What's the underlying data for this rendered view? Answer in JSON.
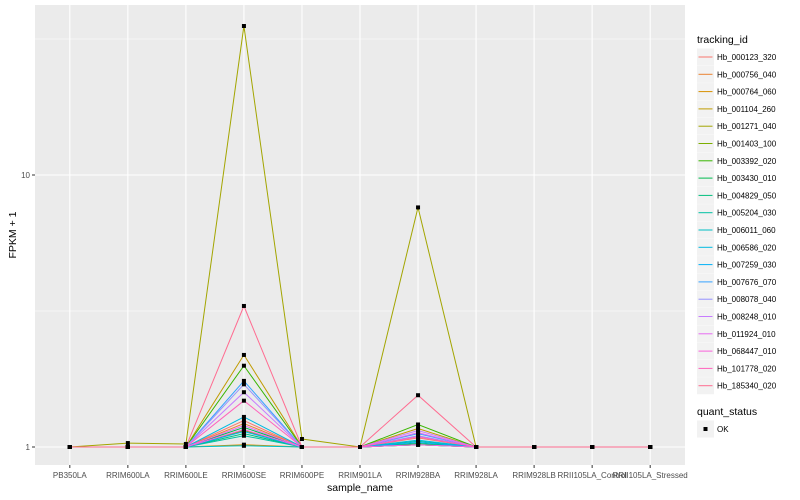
{
  "chart_data": {
    "type": "line",
    "xlabel": "sample_name",
    "ylabel": "FPKM + 1",
    "y_scale": "log10",
    "ylim": [
      0.97,
      47
    ],
    "y_ticks": [
      "1",
      "10"
    ],
    "grid": true,
    "legend_placement": "right",
    "categories": [
      "PB350LA",
      "RRIM600LA",
      "RRIM600LE",
      "RRIM600SE",
      "RRIM600PE",
      "RRIM901LA",
      "RRIM928BA",
      "RRIM928LA",
      "RRIM928LB",
      "RRII105LA_Control",
      "RRII105LA_Stressed"
    ],
    "color_legend_title": "tracking_id",
    "shape_legend_title": "quant_status",
    "shape_legend_items": [
      "OK"
    ],
    "series": [
      {
        "name": "Hb_000123_320",
        "color": "#F8766D",
        "values": [
          1,
          1,
          1,
          1.25,
          1,
          1,
          1.08,
          1,
          1,
          1,
          1
        ]
      },
      {
        "name": "Hb_000756_040",
        "color": "#EA8331",
        "values": [
          1,
          1,
          1,
          1.22,
          1,
          1,
          1.02,
          1,
          1,
          1,
          1
        ]
      },
      {
        "name": "Hb_000764_060",
        "color": "#D89000",
        "values": [
          1,
          1,
          1,
          1.02,
          1,
          1,
          1.02,
          1,
          1,
          1,
          1
        ]
      },
      {
        "name": "Hb_001104_260",
        "color": "#C09B00",
        "values": [
          1,
          1,
          1,
          2.18,
          1,
          1,
          1.17,
          1,
          1,
          1,
          1
        ]
      },
      {
        "name": "Hb_001271_040",
        "color": "#A3A500",
        "values": [
          1,
          1.034,
          1.026,
          35.3,
          1.07,
          1,
          7.6,
          1,
          1,
          1,
          1
        ]
      },
      {
        "name": "Hb_001403_100",
        "color": "#7CAE00",
        "values": [
          1,
          1,
          1,
          1.15,
          1,
          1,
          1.02,
          1,
          1,
          1,
          1
        ]
      },
      {
        "name": "Hb_003392_020",
        "color": "#39B600",
        "values": [
          1,
          1,
          1,
          1.99,
          1,
          1,
          1.21,
          1,
          1,
          1,
          1
        ]
      },
      {
        "name": "Hb_003430_010",
        "color": "#00BB4E",
        "values": [
          1,
          1,
          1,
          1.18,
          1,
          1,
          1.03,
          1,
          1,
          1,
          1
        ]
      },
      {
        "name": "Hb_004829_050",
        "color": "#00BF7D",
        "values": [
          1,
          1,
          1,
          1.12,
          1,
          1,
          1.02,
          1,
          1,
          1,
          1
        ]
      },
      {
        "name": "Hb_005204_030",
        "color": "#00C1A3",
        "values": [
          1,
          1,
          1,
          1.1,
          1,
          1,
          1.05,
          1,
          1,
          1,
          1
        ]
      },
      {
        "name": "Hb_006011_060",
        "color": "#00BFC4",
        "values": [
          1,
          1,
          1,
          1.01,
          1,
          1,
          1.02,
          1,
          1,
          1,
          1
        ]
      },
      {
        "name": "Hb_006586_020",
        "color": "#00BAE0",
        "values": [
          1,
          1,
          1,
          1.29,
          1,
          1,
          1.06,
          1,
          1,
          1,
          1
        ]
      },
      {
        "name": "Hb_007259_030",
        "color": "#00B0F6",
        "values": [
          1,
          1,
          1,
          1.14,
          1,
          1,
          1.04,
          1,
          1,
          1,
          1
        ]
      },
      {
        "name": "Hb_007676_070",
        "color": "#35A2FF",
        "values": [
          1,
          1,
          1,
          1.75,
          1,
          1,
          1.12,
          1,
          1,
          1,
          1
        ]
      },
      {
        "name": "Hb_008078_040",
        "color": "#9590FF",
        "values": [
          1,
          1,
          1,
          1.7,
          1,
          1,
          1.1,
          1,
          1,
          1,
          1
        ]
      },
      {
        "name": "Hb_008248_010",
        "color": "#C77CFF",
        "values": [
          1,
          1,
          1,
          1.59,
          1,
          1,
          1.15,
          1,
          1,
          1,
          1
        ]
      },
      {
        "name": "Hb_011924_010",
        "color": "#E76BF3",
        "values": [
          1,
          1,
          1,
          1.2,
          1,
          1,
          1.13,
          1,
          1,
          1,
          1
        ]
      },
      {
        "name": "Hb_068447_010",
        "color": "#FA62DB",
        "values": [
          1,
          1,
          1,
          1.16,
          1,
          1,
          1.02,
          1,
          1,
          1,
          1
        ]
      },
      {
        "name": "Hb_101778_020",
        "color": "#FF62BC",
        "values": [
          1,
          1,
          1,
          1.48,
          1,
          1,
          1.09,
          1,
          1,
          1,
          1
        ]
      },
      {
        "name": "Hb_185340_020",
        "color": "#FF6C91",
        "values": [
          1,
          1,
          1,
          3.3,
          1,
          1,
          1.55,
          1,
          1,
          1,
          1
        ]
      }
    ]
  }
}
